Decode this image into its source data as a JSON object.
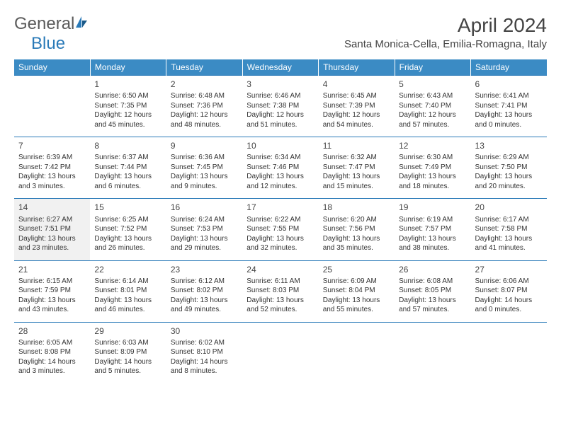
{
  "logo": {
    "text1": "General",
    "text2": "Blue"
  },
  "title": "April 2024",
  "location": "Santa Monica-Cella, Emilia-Romagna, Italy",
  "colors": {
    "header_bg": "#3b8bc4",
    "header_text": "#ffffff",
    "border": "#2a7ab8",
    "body_text": "#333333",
    "logo_gray": "#5a5a5a",
    "logo_blue": "#2a7ab8"
  },
  "dayHeaders": [
    "Sunday",
    "Monday",
    "Tuesday",
    "Wednesday",
    "Thursday",
    "Friday",
    "Saturday"
  ],
  "weeks": [
    [
      null,
      {
        "n": "1",
        "rise": "Sunrise: 6:50 AM",
        "set": "Sunset: 7:35 PM",
        "day": "Daylight: 12 hours and 45 minutes."
      },
      {
        "n": "2",
        "rise": "Sunrise: 6:48 AM",
        "set": "Sunset: 7:36 PM",
        "day": "Daylight: 12 hours and 48 minutes."
      },
      {
        "n": "3",
        "rise": "Sunrise: 6:46 AM",
        "set": "Sunset: 7:38 PM",
        "day": "Daylight: 12 hours and 51 minutes."
      },
      {
        "n": "4",
        "rise": "Sunrise: 6:45 AM",
        "set": "Sunset: 7:39 PM",
        "day": "Daylight: 12 hours and 54 minutes."
      },
      {
        "n": "5",
        "rise": "Sunrise: 6:43 AM",
        "set": "Sunset: 7:40 PM",
        "day": "Daylight: 12 hours and 57 minutes."
      },
      {
        "n": "6",
        "rise": "Sunrise: 6:41 AM",
        "set": "Sunset: 7:41 PM",
        "day": "Daylight: 13 hours and 0 minutes."
      }
    ],
    [
      {
        "n": "7",
        "rise": "Sunrise: 6:39 AM",
        "set": "Sunset: 7:42 PM",
        "day": "Daylight: 13 hours and 3 minutes."
      },
      {
        "n": "8",
        "rise": "Sunrise: 6:37 AM",
        "set": "Sunset: 7:44 PM",
        "day": "Daylight: 13 hours and 6 minutes."
      },
      {
        "n": "9",
        "rise": "Sunrise: 6:36 AM",
        "set": "Sunset: 7:45 PM",
        "day": "Daylight: 13 hours and 9 minutes."
      },
      {
        "n": "10",
        "rise": "Sunrise: 6:34 AM",
        "set": "Sunset: 7:46 PM",
        "day": "Daylight: 13 hours and 12 minutes."
      },
      {
        "n": "11",
        "rise": "Sunrise: 6:32 AM",
        "set": "Sunset: 7:47 PM",
        "day": "Daylight: 13 hours and 15 minutes."
      },
      {
        "n": "12",
        "rise": "Sunrise: 6:30 AM",
        "set": "Sunset: 7:49 PM",
        "day": "Daylight: 13 hours and 18 minutes."
      },
      {
        "n": "13",
        "rise": "Sunrise: 6:29 AM",
        "set": "Sunset: 7:50 PM",
        "day": "Daylight: 13 hours and 20 minutes."
      }
    ],
    [
      {
        "n": "14",
        "rise": "Sunrise: 6:27 AM",
        "set": "Sunset: 7:51 PM",
        "day": "Daylight: 13 hours and 23 minutes.",
        "shaded": true
      },
      {
        "n": "15",
        "rise": "Sunrise: 6:25 AM",
        "set": "Sunset: 7:52 PM",
        "day": "Daylight: 13 hours and 26 minutes."
      },
      {
        "n": "16",
        "rise": "Sunrise: 6:24 AM",
        "set": "Sunset: 7:53 PM",
        "day": "Daylight: 13 hours and 29 minutes."
      },
      {
        "n": "17",
        "rise": "Sunrise: 6:22 AM",
        "set": "Sunset: 7:55 PM",
        "day": "Daylight: 13 hours and 32 minutes."
      },
      {
        "n": "18",
        "rise": "Sunrise: 6:20 AM",
        "set": "Sunset: 7:56 PM",
        "day": "Daylight: 13 hours and 35 minutes."
      },
      {
        "n": "19",
        "rise": "Sunrise: 6:19 AM",
        "set": "Sunset: 7:57 PM",
        "day": "Daylight: 13 hours and 38 minutes."
      },
      {
        "n": "20",
        "rise": "Sunrise: 6:17 AM",
        "set": "Sunset: 7:58 PM",
        "day": "Daylight: 13 hours and 41 minutes."
      }
    ],
    [
      {
        "n": "21",
        "rise": "Sunrise: 6:15 AM",
        "set": "Sunset: 7:59 PM",
        "day": "Daylight: 13 hours and 43 minutes."
      },
      {
        "n": "22",
        "rise": "Sunrise: 6:14 AM",
        "set": "Sunset: 8:01 PM",
        "day": "Daylight: 13 hours and 46 minutes."
      },
      {
        "n": "23",
        "rise": "Sunrise: 6:12 AM",
        "set": "Sunset: 8:02 PM",
        "day": "Daylight: 13 hours and 49 minutes."
      },
      {
        "n": "24",
        "rise": "Sunrise: 6:11 AM",
        "set": "Sunset: 8:03 PM",
        "day": "Daylight: 13 hours and 52 minutes."
      },
      {
        "n": "25",
        "rise": "Sunrise: 6:09 AM",
        "set": "Sunset: 8:04 PM",
        "day": "Daylight: 13 hours and 55 minutes."
      },
      {
        "n": "26",
        "rise": "Sunrise: 6:08 AM",
        "set": "Sunset: 8:05 PM",
        "day": "Daylight: 13 hours and 57 minutes."
      },
      {
        "n": "27",
        "rise": "Sunrise: 6:06 AM",
        "set": "Sunset: 8:07 PM",
        "day": "Daylight: 14 hours and 0 minutes."
      }
    ],
    [
      {
        "n": "28",
        "rise": "Sunrise: 6:05 AM",
        "set": "Sunset: 8:08 PM",
        "day": "Daylight: 14 hours and 3 minutes."
      },
      {
        "n": "29",
        "rise": "Sunrise: 6:03 AM",
        "set": "Sunset: 8:09 PM",
        "day": "Daylight: 14 hours and 5 minutes."
      },
      {
        "n": "30",
        "rise": "Sunrise: 6:02 AM",
        "set": "Sunset: 8:10 PM",
        "day": "Daylight: 14 hours and 8 minutes."
      },
      null,
      null,
      null,
      null
    ]
  ]
}
